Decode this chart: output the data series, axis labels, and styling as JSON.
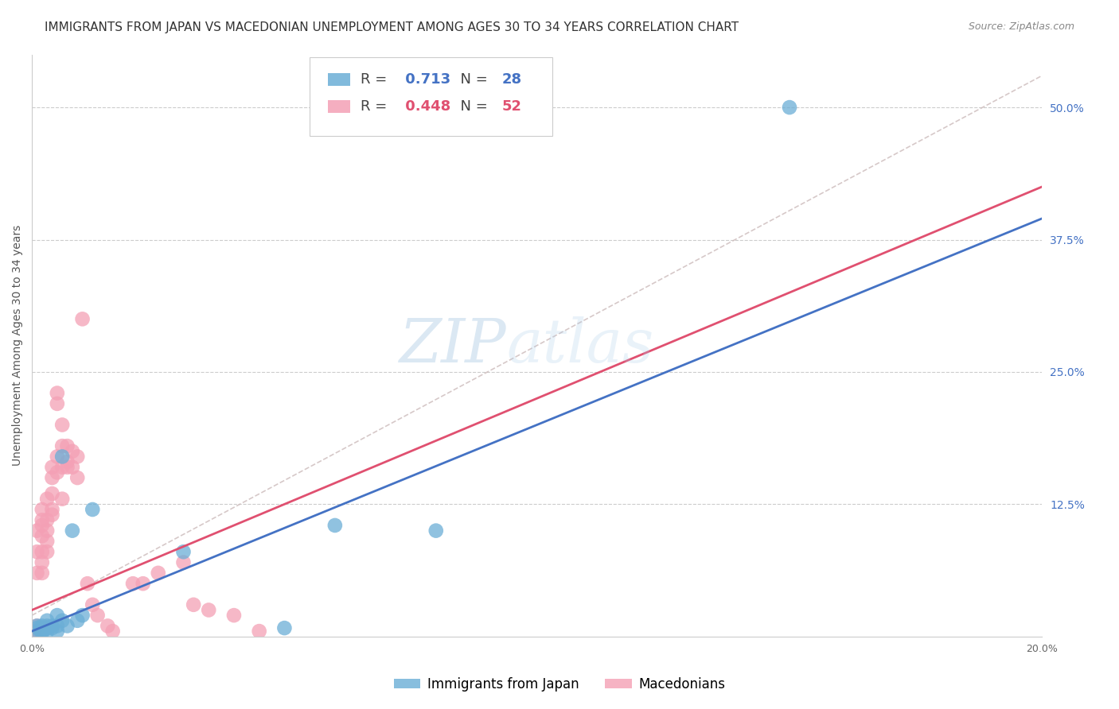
{
  "title": "IMMIGRANTS FROM JAPAN VS MACEDONIAN UNEMPLOYMENT AMONG AGES 30 TO 34 YEARS CORRELATION CHART",
  "source": "Source: ZipAtlas.com",
  "ylabel": "Unemployment Among Ages 30 to 34 years",
  "xlim": [
    0.0,
    0.2
  ],
  "ylim": [
    0.0,
    0.55
  ],
  "ytick_vals_right": [
    0.125,
    0.25,
    0.375,
    0.5
  ],
  "ytick_labels_right": [
    "12.5%",
    "25.0%",
    "37.5%",
    "50.0%"
  ],
  "background_color": "#ffffff",
  "grid_color": "#cccccc",
  "japan_color": "#6baed6",
  "macedonian_color": "#f4a0b5",
  "japan_R": 0.713,
  "japan_N": 28,
  "macedonian_R": 0.448,
  "macedonian_N": 52,
  "japan_scatter_x": [
    0.001,
    0.001,
    0.001,
    0.002,
    0.002,
    0.002,
    0.002,
    0.003,
    0.003,
    0.003,
    0.003,
    0.004,
    0.004,
    0.005,
    0.005,
    0.005,
    0.006,
    0.006,
    0.007,
    0.008,
    0.009,
    0.01,
    0.012,
    0.03,
    0.05,
    0.06,
    0.08,
    0.15
  ],
  "japan_scatter_y": [
    0.005,
    0.01,
    0.008,
    0.005,
    0.008,
    0.01,
    0.003,
    0.01,
    0.008,
    0.015,
    0.005,
    0.01,
    0.008,
    0.02,
    0.005,
    0.01,
    0.17,
    0.015,
    0.01,
    0.1,
    0.015,
    0.02,
    0.12,
    0.08,
    0.008,
    0.105,
    0.1,
    0.5
  ],
  "macedonian_scatter_x": [
    0.0005,
    0.001,
    0.001,
    0.001,
    0.001,
    0.001,
    0.002,
    0.002,
    0.002,
    0.002,
    0.002,
    0.002,
    0.002,
    0.003,
    0.003,
    0.003,
    0.003,
    0.003,
    0.004,
    0.004,
    0.004,
    0.004,
    0.004,
    0.005,
    0.005,
    0.005,
    0.005,
    0.006,
    0.006,
    0.006,
    0.006,
    0.007,
    0.007,
    0.007,
    0.008,
    0.008,
    0.009,
    0.009,
    0.01,
    0.011,
    0.012,
    0.013,
    0.015,
    0.016,
    0.02,
    0.022,
    0.025,
    0.03,
    0.032,
    0.035,
    0.04,
    0.045
  ],
  "macedonian_scatter_y": [
    0.005,
    0.08,
    0.06,
    0.1,
    0.01,
    0.005,
    0.12,
    0.11,
    0.105,
    0.095,
    0.08,
    0.07,
    0.06,
    0.13,
    0.11,
    0.1,
    0.09,
    0.08,
    0.16,
    0.15,
    0.135,
    0.12,
    0.115,
    0.23,
    0.22,
    0.17,
    0.155,
    0.2,
    0.18,
    0.16,
    0.13,
    0.18,
    0.165,
    0.16,
    0.175,
    0.16,
    0.17,
    0.15,
    0.3,
    0.05,
    0.03,
    0.02,
    0.01,
    0.005,
    0.05,
    0.05,
    0.06,
    0.07,
    0.03,
    0.025,
    0.02,
    0.005
  ],
  "japan_line_x": [
    0.0,
    0.2
  ],
  "japan_line_y": [
    0.005,
    0.395
  ],
  "macedonian_line_x": [
    0.0,
    0.2
  ],
  "macedonian_line_y": [
    0.025,
    0.425
  ],
  "diag_line_x": [
    0.0,
    0.2
  ],
  "diag_line_y": [
    0.02,
    0.53
  ],
  "legend_japan_label": "Immigrants from Japan",
  "legend_macedonian_label": "Macedonians",
  "title_fontsize": 11,
  "source_fontsize": 9,
  "axis_fontsize": 9,
  "ylabel_fontsize": 10,
  "watermark_fontsize": 55
}
